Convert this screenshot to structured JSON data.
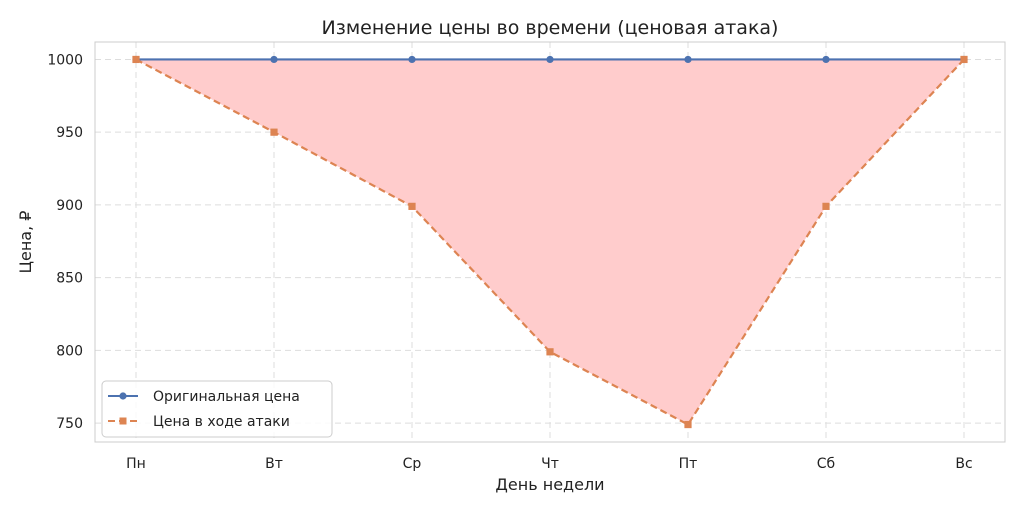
{
  "chart_data": {
    "type": "line",
    "title": "Изменение цены во времени (ценовая атака)",
    "xlabel": "День недели",
    "ylabel": "Цена, ₽",
    "categories": [
      "Пн",
      "Вт",
      "Ср",
      "Чт",
      "Пт",
      "Сб",
      "Вс"
    ],
    "yticks": [
      750,
      800,
      850,
      900,
      950,
      1000
    ],
    "ylim": [
      737,
      1012
    ],
    "grid": true,
    "legend_position": "bottom-left",
    "fill_between_series": true,
    "fill_color": "#ffcccc",
    "series": [
      {
        "name": "Оригинальная цена",
        "values": [
          1000,
          1000,
          1000,
          1000,
          1000,
          1000,
          1000
        ],
        "color": "#4c72b0",
        "marker": "circle",
        "line_style": "solid"
      },
      {
        "name": "Цена в ходе атаки",
        "values": [
          1000,
          950,
          899,
          799,
          749,
          899,
          1000
        ],
        "color": "#dd8452",
        "marker": "square",
        "line_style": "dashed"
      }
    ]
  }
}
